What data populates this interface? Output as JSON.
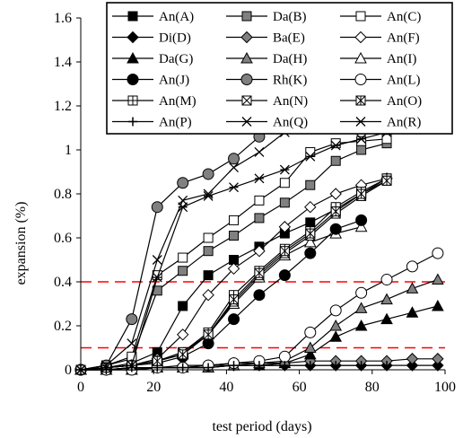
{
  "chart_data": {
    "type": "line",
    "xlabel": "test period (days)",
    "ylabel": "expansion (%)",
    "xlim": [
      0,
      100
    ],
    "ylim": [
      0,
      1.6
    ],
    "xticks": [
      0,
      20,
      40,
      60,
      80,
      100
    ],
    "yticks": [
      0,
      0.2,
      0.4,
      0.6,
      0.8,
      1,
      1.2,
      1.4,
      1.6
    ],
    "xtick_labels": [
      "0",
      "20",
      "40",
      "60",
      "80",
      "100"
    ],
    "ytick_labels": [
      "0",
      "0.2",
      "0.4",
      "0.6",
      "0.8",
      "1",
      "1.2",
      "1.4",
      "1.6"
    ],
    "grid": false,
    "legend_position": "top",
    "reference_lines": [
      {
        "y": 0.4,
        "color": "#ff0000",
        "style": "dashed"
      },
      {
        "y": 0.1,
        "color": "#ff0000",
        "style": "dashed"
      }
    ],
    "series": [
      {
        "name": "An(A)",
        "marker": "square-filled",
        "x": [
          0,
          7,
          14,
          21,
          28,
          35,
          42,
          49,
          56,
          63,
          70,
          77,
          84
        ],
        "y": [
          0,
          0.01,
          0.03,
          0.08,
          0.29,
          0.43,
          0.5,
          0.56,
          0.62,
          0.67,
          0.73,
          0.8,
          0.87
        ]
      },
      {
        "name": "Da(B)",
        "marker": "square-gray",
        "x": [
          0,
          7,
          14,
          21,
          28,
          35,
          42,
          49,
          56,
          63,
          70,
          77,
          84
        ],
        "y": [
          0,
          0.02,
          0.05,
          0.36,
          0.45,
          0.54,
          0.61,
          0.69,
          0.76,
          0.84,
          0.95,
          1.0,
          1.03
        ]
      },
      {
        "name": "An(C)",
        "marker": "square-open",
        "x": [
          0,
          7,
          14,
          21,
          28,
          35,
          42,
          49,
          56,
          63,
          70,
          77,
          84
        ],
        "y": [
          0,
          0.02,
          0.06,
          0.43,
          0.51,
          0.6,
          0.68,
          0.77,
          0.85,
          0.99,
          1.03,
          1.04,
          1.05
        ]
      },
      {
        "name": "Di(D)",
        "marker": "diamond-filled",
        "x": [
          0,
          7,
          14,
          21,
          28,
          35,
          42,
          49,
          56,
          63,
          70,
          77,
          84,
          91,
          98
        ],
        "y": [
          0,
          0.0,
          0.01,
          0.01,
          0.01,
          0.02,
          0.02,
          0.02,
          0.02,
          0.02,
          0.02,
          0.02,
          0.02,
          0.02,
          0.02
        ]
      },
      {
        "name": "Ba(E)",
        "marker": "diamond-gray",
        "x": [
          0,
          7,
          14,
          21,
          28,
          35,
          42,
          49,
          56,
          63,
          70,
          77,
          84,
          91,
          98
        ],
        "y": [
          0,
          0.0,
          0.01,
          0.01,
          0.02,
          0.02,
          0.03,
          0.03,
          0.03,
          0.04,
          0.04,
          0.04,
          0.04,
          0.05,
          0.05
        ]
      },
      {
        "name": "An(F)",
        "marker": "diamond-open",
        "x": [
          0,
          7,
          14,
          21,
          28,
          35,
          42,
          49,
          56,
          63,
          70,
          77,
          84
        ],
        "y": [
          0,
          0.01,
          0.02,
          0.05,
          0.16,
          0.34,
          0.46,
          0.54,
          0.65,
          0.74,
          0.8,
          0.84,
          0.87
        ]
      },
      {
        "name": "Da(G)",
        "marker": "triangle-filled",
        "x": [
          0,
          7,
          14,
          21,
          28,
          35,
          42,
          49,
          56,
          63,
          70,
          77,
          84,
          91,
          98
        ],
        "y": [
          0,
          0.0,
          0.0,
          0.01,
          0.01,
          0.01,
          0.02,
          0.02,
          0.03,
          0.07,
          0.15,
          0.2,
          0.23,
          0.26,
          0.29
        ]
      },
      {
        "name": "Da(H)",
        "marker": "triangle-gray",
        "x": [
          0,
          7,
          14,
          21,
          28,
          35,
          42,
          49,
          56,
          63,
          70,
          77,
          84,
          91,
          98
        ],
        "y": [
          0,
          0.0,
          0.0,
          0.01,
          0.01,
          0.01,
          0.02,
          0.03,
          0.04,
          0.1,
          0.2,
          0.28,
          0.32,
          0.37,
          0.41
        ]
      },
      {
        "name": "An(I)",
        "marker": "triangle-open",
        "x": [
          0,
          7,
          14,
          21,
          28,
          35,
          42,
          49,
          56,
          63,
          70,
          77
        ],
        "y": [
          0,
          0.01,
          0.02,
          0.04,
          0.07,
          0.16,
          0.3,
          0.42,
          0.52,
          0.58,
          0.62,
          0.65
        ]
      },
      {
        "name": "An(J)",
        "marker": "circle-filled",
        "x": [
          0,
          7,
          14,
          21,
          28,
          35,
          42,
          49,
          56,
          63,
          70,
          77
        ],
        "y": [
          0,
          0.01,
          0.02,
          0.03,
          0.06,
          0.12,
          0.23,
          0.34,
          0.43,
          0.53,
          0.64,
          0.68
        ]
      },
      {
        "name": "Rh(K)",
        "marker": "circle-gray",
        "x": [
          0,
          7,
          14,
          21,
          28,
          35,
          42,
          49,
          56,
          63
        ],
        "y": [
          0,
          0.02,
          0.23,
          0.74,
          0.85,
          0.89,
          0.96,
          1.06,
          1.17,
          1.31
        ]
      },
      {
        "name": "An(L)",
        "marker": "circle-open",
        "x": [
          0,
          7,
          14,
          21,
          28,
          35,
          42,
          49,
          56,
          63,
          70,
          77,
          84,
          91,
          98
        ],
        "y": [
          0,
          0.0,
          0.0,
          0.01,
          0.01,
          0.02,
          0.03,
          0.04,
          0.06,
          0.17,
          0.27,
          0.35,
          0.41,
          0.47,
          0.53
        ]
      },
      {
        "name": "An(M)",
        "marker": "square-cross",
        "x": [
          0,
          7,
          14,
          21,
          28,
          35,
          42,
          49,
          56,
          63,
          70,
          77,
          84
        ],
        "y": [
          0,
          0.01,
          0.02,
          0.04,
          0.08,
          0.17,
          0.34,
          0.45,
          0.55,
          0.63,
          0.74,
          0.81,
          0.87
        ]
      },
      {
        "name": "An(N)",
        "marker": "square-x",
        "x": [
          0,
          7,
          14,
          21,
          28,
          35,
          42,
          49,
          56,
          63,
          70,
          77,
          84
        ],
        "y": [
          0,
          0.01,
          0.02,
          0.04,
          0.08,
          0.16,
          0.31,
          0.43,
          0.53,
          0.61,
          0.71,
          0.79,
          0.86
        ]
      },
      {
        "name": "An(O)",
        "marker": "square-star",
        "x": [
          0,
          7,
          14,
          21,
          28,
          35,
          42,
          49,
          56,
          63,
          70,
          77,
          84
        ],
        "y": [
          0,
          0.01,
          0.02,
          0.04,
          0.07,
          0.16,
          0.32,
          0.44,
          0.54,
          0.62,
          0.72,
          0.8,
          0.86
        ]
      },
      {
        "name": "An(P)",
        "marker": "plus",
        "x": [
          0,
          7,
          14,
          21,
          28,
          35,
          42,
          49,
          56,
          63,
          70,
          77,
          84
        ],
        "y": [
          0,
          0.0,
          0.01,
          0.01,
          0.01,
          0.01,
          0.02,
          0.02,
          0.02,
          0.02,
          0.02,
          0.02,
          0.02
        ]
      },
      {
        "name": "An(Q)",
        "marker": "x",
        "x": [
          0,
          7,
          14,
          21,
          28,
          35,
          42,
          49,
          56,
          63,
          70,
          77,
          84,
          91
        ],
        "y": [
          0,
          0.02,
          0.12,
          0.5,
          0.77,
          0.8,
          0.92,
          0.99,
          1.08,
          1.14,
          1.2,
          1.26,
          1.32,
          1.36
        ]
      },
      {
        "name": "An(R)",
        "marker": "asterisk",
        "x": [
          0,
          7,
          14,
          21,
          28,
          35,
          42,
          49,
          56,
          63,
          70,
          77,
          84,
          91
        ],
        "y": [
          0,
          0.01,
          0.02,
          0.42,
          0.74,
          0.79,
          0.83,
          0.87,
          0.91,
          0.97,
          1.02,
          1.05,
          1.08,
          1.12
        ]
      }
    ]
  }
}
